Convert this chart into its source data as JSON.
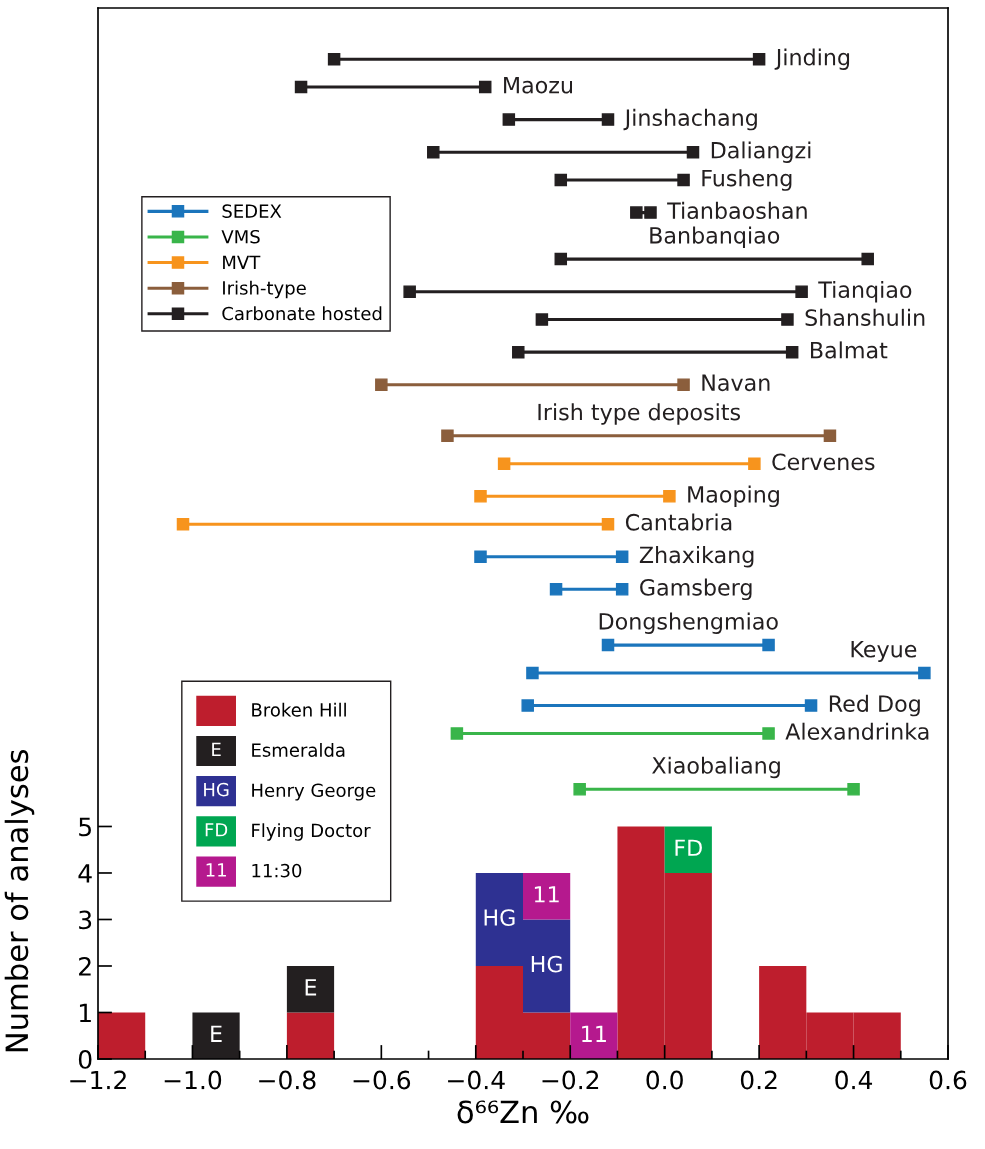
{
  "chart_data": {
    "type": "bar",
    "stacked": true,
    "xlabel": "δ⁶⁶Zn ‰",
    "ylabel": "Number of analyses",
    "xlim": [
      -1.2,
      0.6
    ],
    "xticks": [
      {
        "value": -1.2,
        "label": "−1.2"
      },
      {
        "value": -1.1,
        "label": null
      },
      {
        "value": -1.0,
        "label": "−1.0"
      },
      {
        "value": -0.9,
        "label": null
      },
      {
        "value": -0.8,
        "label": "−0.8"
      },
      {
        "value": -0.7,
        "label": null
      },
      {
        "value": -0.6,
        "label": "−0.6"
      },
      {
        "value": -0.5,
        "label": null
      },
      {
        "value": -0.4,
        "label": "−0.4"
      },
      {
        "value": -0.3,
        "label": null
      },
      {
        "value": -0.2,
        "label": "−0.2"
      },
      {
        "value": -0.1,
        "label": null
      },
      {
        "value": 0.0,
        "label": "0.0"
      },
      {
        "value": 0.1,
        "label": null
      },
      {
        "value": 0.2,
        "label": "0.2"
      },
      {
        "value": 0.3,
        "label": null
      },
      {
        "value": 0.4,
        "label": "0.4"
      },
      {
        "value": 0.5,
        "label": null
      },
      {
        "value": 0.6,
        "label": "0.6"
      }
    ],
    "ylim": [
      0,
      22.6
    ],
    "yticks": [
      0,
      1,
      2,
      3,
      4,
      5
    ],
    "grid": false,
    "legend": "left",
    "series": [
      {
        "name": "Broken Hill",
        "color": "#be1e2d",
        "x": [
          -1.15,
          -0.95,
          -0.75,
          -0.35,
          -0.25,
          -0.15,
          -0.05,
          0.05,
          0.25,
          0.35,
          0.45
        ],
        "values": [
          1,
          0,
          1,
          2,
          1,
          0,
          5,
          4,
          2,
          1,
          1
        ]
      },
      {
        "name": "Esmeralda",
        "color": "#231f20",
        "x": [
          -1.15,
          -0.95,
          -0.75,
          -0.35,
          -0.25,
          -0.15,
          -0.05,
          0.05,
          0.25,
          0.35,
          0.45
        ],
        "values": [
          0,
          1,
          1,
          0,
          0,
          0,
          0,
          0,
          0,
          0,
          0
        ]
      },
      {
        "name": "Henry George",
        "color": "#2e3192",
        "x": [
          -1.15,
          -0.95,
          -0.75,
          -0.35,
          -0.25,
          -0.15,
          -0.05,
          0.05,
          0.25,
          0.35,
          0.45
        ],
        "values": [
          0,
          0,
          0,
          2,
          2,
          0,
          0,
          0,
          0,
          0,
          0
        ]
      },
      {
        "name": "Flying Doctor",
        "color": "#00a651",
        "x": [
          -1.15,
          -0.95,
          -0.75,
          -0.35,
          -0.25,
          -0.15,
          -0.05,
          0.05,
          0.25,
          0.35,
          0.45
        ],
        "values": [
          0,
          0,
          0,
          0,
          0,
          0,
          0,
          1,
          0,
          0,
          0
        ]
      },
      {
        "name": "11:30",
        "color": "#b5198e",
        "x": [
          -1.15,
          -0.95,
          -0.75,
          -0.35,
          -0.25,
          -0.15,
          -0.05,
          0.05,
          0.25,
          0.35,
          0.45
        ],
        "values": [
          0,
          0,
          0,
          0,
          1,
          1,
          0,
          0,
          0,
          0,
          0
        ]
      },
      {
        "type": "line",
        "name": "SEDEX",
        "color": "#1b75bc",
        "marker": "square",
        "x": [
          -0.39,
          -0.09,
          null,
          -0.23,
          -0.09,
          null,
          -0.12,
          0.22,
          null,
          -0.28,
          0.55,
          null,
          -0.29,
          0.31
        ],
        "values": [
          10.8,
          10.8,
          null,
          10.1,
          10.1,
          null,
          8.9,
          8.9,
          null,
          8.3,
          8.3,
          null,
          7.6,
          7.6
        ]
      },
      {
        "type": "line",
        "name": "VMS",
        "color": "#39b54a",
        "marker": "square",
        "x": [
          -0.44,
          0.22,
          null,
          -0.18,
          0.4
        ],
        "values": [
          7.0,
          7.0,
          null,
          5.8,
          5.8
        ]
      },
      {
        "type": "line",
        "name": "MVT",
        "color": "#f7941d",
        "marker": "square",
        "x": [
          -0.34,
          0.19,
          null,
          -0.39,
          0.01,
          null,
          -1.02,
          -0.12
        ],
        "values": [
          12.8,
          12.8,
          null,
          12.1,
          12.1,
          null,
          11.5,
          11.5
        ]
      },
      {
        "type": "line",
        "name": "Irish-type",
        "color": "#8b5e3c",
        "marker": "square",
        "x": [
          -0.6,
          0.04,
          null,
          -0.46,
          0.35
        ],
        "values": [
          14.5,
          14.5,
          null,
          13.4,
          13.4
        ]
      },
      {
        "type": "line",
        "name": "Carbonate hosted",
        "color": "#231f20",
        "marker": "square",
        "x": [
          -0.7,
          0.2,
          null,
          -0.77,
          -0.38,
          null,
          -0.33,
          -0.12,
          null,
          -0.49,
          0.06,
          null,
          -0.22,
          0.04,
          null,
          -0.06,
          -0.03,
          null,
          -0.22,
          0.43,
          null,
          -0.54,
          0.29,
          null,
          -0.26,
          0.26,
          null,
          -0.31,
          0.27
        ],
        "values": [
          21.5,
          21.5,
          null,
          20.9,
          20.9,
          null,
          20.2,
          20.2,
          null,
          19.5,
          19.5,
          null,
          18.9,
          18.9,
          null,
          18.2,
          18.2,
          null,
          17.2,
          17.2,
          null,
          16.5,
          16.5,
          null,
          15.9,
          15.9,
          null,
          15.2,
          15.2
        ]
      }
    ],
    "annotations": [
      {
        "text": "E",
        "x": -0.95,
        "y": 1
      },
      {
        "text": "E",
        "x": -0.75,
        "y": 2
      },
      {
        "text": "HG",
        "x": -0.35,
        "y": 4
      },
      {
        "text": "HG",
        "x": -0.25,
        "y": 3
      },
      {
        "text": "11",
        "x": -0.25,
        "y": 4
      },
      {
        "text": "11",
        "x": -0.15,
        "y": 1
      },
      {
        "text": "FD",
        "x": 0.05,
        "y": 5
      },
      "Jinding",
      "Maozu",
      "Jinshachang",
      "Daliangzi",
      "Fusheng",
      "Tianbaoshan",
      "Banbanqiao",
      "Tianqiao",
      "Shanshulin",
      "Balmat",
      "Navan",
      "Irish type deposits",
      "Cervenes",
      "Maoping",
      "Cantabria",
      "Zhaxikang",
      "Gamsberg",
      "Dongshengmiao",
      "Keyue",
      "Red Dog",
      "Alexandrinka",
      "Xiaobaliang"
    ]
  }
}
